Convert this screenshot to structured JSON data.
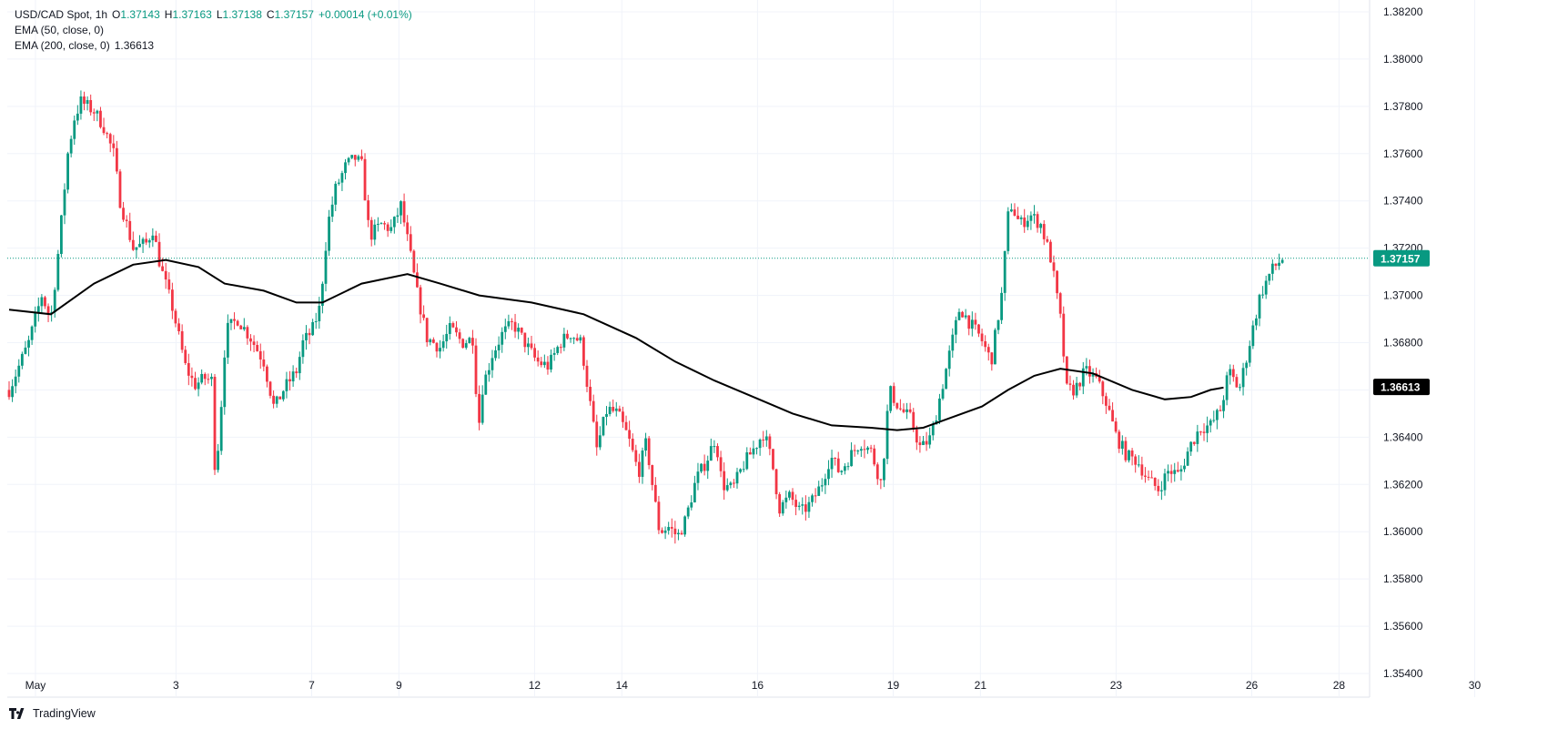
{
  "legend": {
    "symbol": "USD/CAD Spot, 1h",
    "o_label": "O",
    "o": "1.37143",
    "h_label": "H",
    "h": "1.37163",
    "l_label": "L",
    "l": "1.37138",
    "c_label": "C",
    "c": "1.37157",
    "change": "+0.00014 (+0.01%)",
    "ema50": "EMA (50, close, 0)",
    "ema200": "EMA (200, close, 0)",
    "ema200_value": "1.36613"
  },
  "branding": {
    "name": "TradingView"
  },
  "colors": {
    "up": "#089981",
    "down": "#f23645",
    "ema200": "#000000",
    "grid": "#f0f3fa",
    "last_price": "#089981"
  },
  "chart_data": {
    "type": "candlestick",
    "title": "USD/CAD Spot, 1h",
    "x_tick_labels": [
      "May",
      "3",
      "7",
      "9",
      "12",
      "14",
      "16",
      "19",
      "21",
      "23",
      "26",
      "28",
      "30"
    ],
    "y_tick_labels": [
      "1.38200",
      "1.38000",
      "1.37800",
      "1.37600",
      "1.37400",
      "1.37200",
      "1.37000",
      "1.36800",
      "1.36600",
      "1.36400",
      "1.36200",
      "1.36000",
      "1.35800",
      "1.35600",
      "1.35400"
    ],
    "ylim": [
      1.353,
      1.3825
    ],
    "last_price": 1.37157,
    "last_price_label": "1.37157",
    "ema200_last": 1.36613,
    "ema200_label": "1.36613",
    "grid": true,
    "price_path": [
      [
        0,
        1.366
      ],
      [
        1.5,
        1.368
      ],
      [
        2.5,
        1.37
      ],
      [
        3.2,
        1.369
      ],
      [
        3.8,
        1.372
      ],
      [
        4.5,
        1.376
      ],
      [
        5.0,
        1.3775
      ],
      [
        5.5,
        1.3782
      ],
      [
        6.5,
        1.3778
      ],
      [
        7.2,
        1.3772
      ],
      [
        8.0,
        1.376
      ],
      [
        8.5,
        1.374
      ],
      [
        9.5,
        1.372
      ],
      [
        10.5,
        1.3722
      ],
      [
        11.0,
        1.3728
      ],
      [
        11.6,
        1.3712
      ],
      [
        12.5,
        1.3695
      ],
      [
        13.5,
        1.367
      ],
      [
        14.2,
        1.3662
      ],
      [
        15.0,
        1.3665
      ],
      [
        15.5,
        1.3664
      ],
      [
        15.8,
        1.3622
      ],
      [
        16.2,
        1.365
      ],
      [
        16.6,
        1.3685
      ],
      [
        17.5,
        1.369
      ],
      [
        18.5,
        1.3682
      ],
      [
        19.5,
        1.3672
      ],
      [
        20.3,
        1.3652
      ],
      [
        21.0,
        1.366
      ],
      [
        22.0,
        1.3668
      ],
      [
        22.5,
        1.368
      ],
      [
        23.2,
        1.3685
      ],
      [
        23.8,
        1.3695
      ],
      [
        24.4,
        1.373
      ],
      [
        25.0,
        1.3745
      ],
      [
        25.8,
        1.3755
      ],
      [
        26.5,
        1.3758
      ],
      [
        27.0,
        1.3755
      ],
      [
        27.6,
        1.3725
      ],
      [
        28.5,
        1.373
      ],
      [
        29.3,
        1.3728
      ],
      [
        30.0,
        1.3738
      ],
      [
        30.7,
        1.3718
      ],
      [
        31.2,
        1.3702
      ],
      [
        32.0,
        1.3682
      ],
      [
        33.0,
        1.3678
      ],
      [
        33.8,
        1.3686
      ],
      [
        34.7,
        1.368
      ],
      [
        35.6,
        1.3682
      ],
      [
        35.9,
        1.364
      ],
      [
        36.2,
        1.366
      ],
      [
        37.0,
        1.3675
      ],
      [
        37.8,
        1.3684
      ],
      [
        38.6,
        1.3688
      ],
      [
        39.5,
        1.368
      ],
      [
        40.4,
        1.3672
      ],
      [
        41.3,
        1.367
      ],
      [
        42.2,
        1.368
      ],
      [
        43.0,
        1.3684
      ],
      [
        43.8,
        1.368
      ],
      [
        44.2,
        1.3665
      ],
      [
        45.0,
        1.3635
      ],
      [
        45.8,
        1.3652
      ],
      [
        46.6,
        1.365
      ],
      [
        47.4,
        1.364
      ],
      [
        48.2,
        1.3625
      ],
      [
        48.8,
        1.3638
      ],
      [
        49.2,
        1.3622
      ],
      [
        49.8,
        1.36
      ],
      [
        50.5,
        1.3602
      ],
      [
        51.2,
        1.3598
      ],
      [
        51.8,
        1.3605
      ],
      [
        52.6,
        1.3622
      ],
      [
        53.4,
        1.363
      ],
      [
        54.1,
        1.364
      ],
      [
        54.6,
        1.362
      ],
      [
        55.4,
        1.3618
      ],
      [
        56.2,
        1.3628
      ],
      [
        57.0,
        1.3635
      ],
      [
        57.8,
        1.3642
      ],
      [
        58.4,
        1.363
      ],
      [
        59.0,
        1.361
      ],
      [
        59.8,
        1.3615
      ],
      [
        60.6,
        1.3608
      ],
      [
        61.4,
        1.3612
      ],
      [
        62.2,
        1.362
      ],
      [
        62.9,
        1.3632
      ],
      [
        63.6,
        1.3625
      ],
      [
        64.4,
        1.3632
      ],
      [
        65.2,
        1.3638
      ],
      [
        66.0,
        1.3634
      ],
      [
        66.8,
        1.362
      ],
      [
        67.4,
        1.366
      ],
      [
        68.2,
        1.3652
      ],
      [
        69.0,
        1.3648
      ],
      [
        69.8,
        1.3635
      ],
      [
        70.6,
        1.364
      ],
      [
        71.4,
        1.366
      ],
      [
        72.2,
        1.368
      ],
      [
        72.8,
        1.3695
      ],
      [
        73.6,
        1.3688
      ],
      [
        74.4,
        1.3682
      ],
      [
        75.2,
        1.3672
      ],
      [
        76.0,
        1.37
      ],
      [
        76.6,
        1.374
      ],
      [
        77.4,
        1.373
      ],
      [
        78.2,
        1.3734
      ],
      [
        79.0,
        1.373
      ],
      [
        79.8,
        1.3715
      ],
      [
        80.5,
        1.369
      ],
      [
        81.0,
        1.366
      ],
      [
        81.6,
        1.366
      ],
      [
        82.4,
        1.3668
      ],
      [
        83.2,
        1.3665
      ],
      [
        84.0,
        1.3655
      ],
      [
        84.8,
        1.364
      ],
      [
        85.6,
        1.3632
      ],
      [
        86.4,
        1.363
      ],
      [
        87.2,
        1.3622
      ],
      [
        88.0,
        1.3618
      ],
      [
        88.8,
        1.3626
      ],
      [
        89.6,
        1.3624
      ],
      [
        90.4,
        1.3636
      ],
      [
        91.2,
        1.3644
      ],
      [
        92.0,
        1.3645
      ],
      [
        92.8,
        1.3652
      ],
      [
        93.4,
        1.3668
      ],
      [
        94.2,
        1.366
      ],
      [
        95.0,
        1.368
      ],
      [
        95.8,
        1.37
      ],
      [
        96.6,
        1.371
      ],
      [
        97.5,
        1.37157
      ]
    ],
    "ema200_path": [
      [
        0,
        1.3694
      ],
      [
        3.2,
        1.3692
      ],
      [
        6.5,
        1.3705
      ],
      [
        9.5,
        1.3713
      ],
      [
        12.0,
        1.3715
      ],
      [
        14.5,
        1.3712
      ],
      [
        16.5,
        1.3705
      ],
      [
        19.5,
        1.3702
      ],
      [
        22.0,
        1.3697
      ],
      [
        24.0,
        1.3697
      ],
      [
        27.0,
        1.3705
      ],
      [
        30.5,
        1.3709
      ],
      [
        33.0,
        1.3705
      ],
      [
        36.0,
        1.37
      ],
      [
        40.0,
        1.3697
      ],
      [
        44.0,
        1.3692
      ],
      [
        48.0,
        1.3682
      ],
      [
        51.0,
        1.3672
      ],
      [
        54.0,
        1.3664
      ],
      [
        57.0,
        1.3657
      ],
      [
        60.0,
        1.365
      ],
      [
        63.0,
        1.3645
      ],
      [
        66.0,
        1.3644
      ],
      [
        68.0,
        1.3643
      ],
      [
        70.0,
        1.3644
      ],
      [
        72.0,
        1.3648
      ],
      [
        74.5,
        1.3653
      ],
      [
        76.5,
        1.366
      ],
      [
        78.5,
        1.3666
      ],
      [
        80.5,
        1.3669
      ],
      [
        83.0,
        1.3667
      ],
      [
        86.0,
        1.366
      ],
      [
        88.5,
        1.3656
      ],
      [
        90.5,
        1.3657
      ],
      [
        92.0,
        1.366
      ],
      [
        93.0,
        1.3661
      ]
    ]
  }
}
